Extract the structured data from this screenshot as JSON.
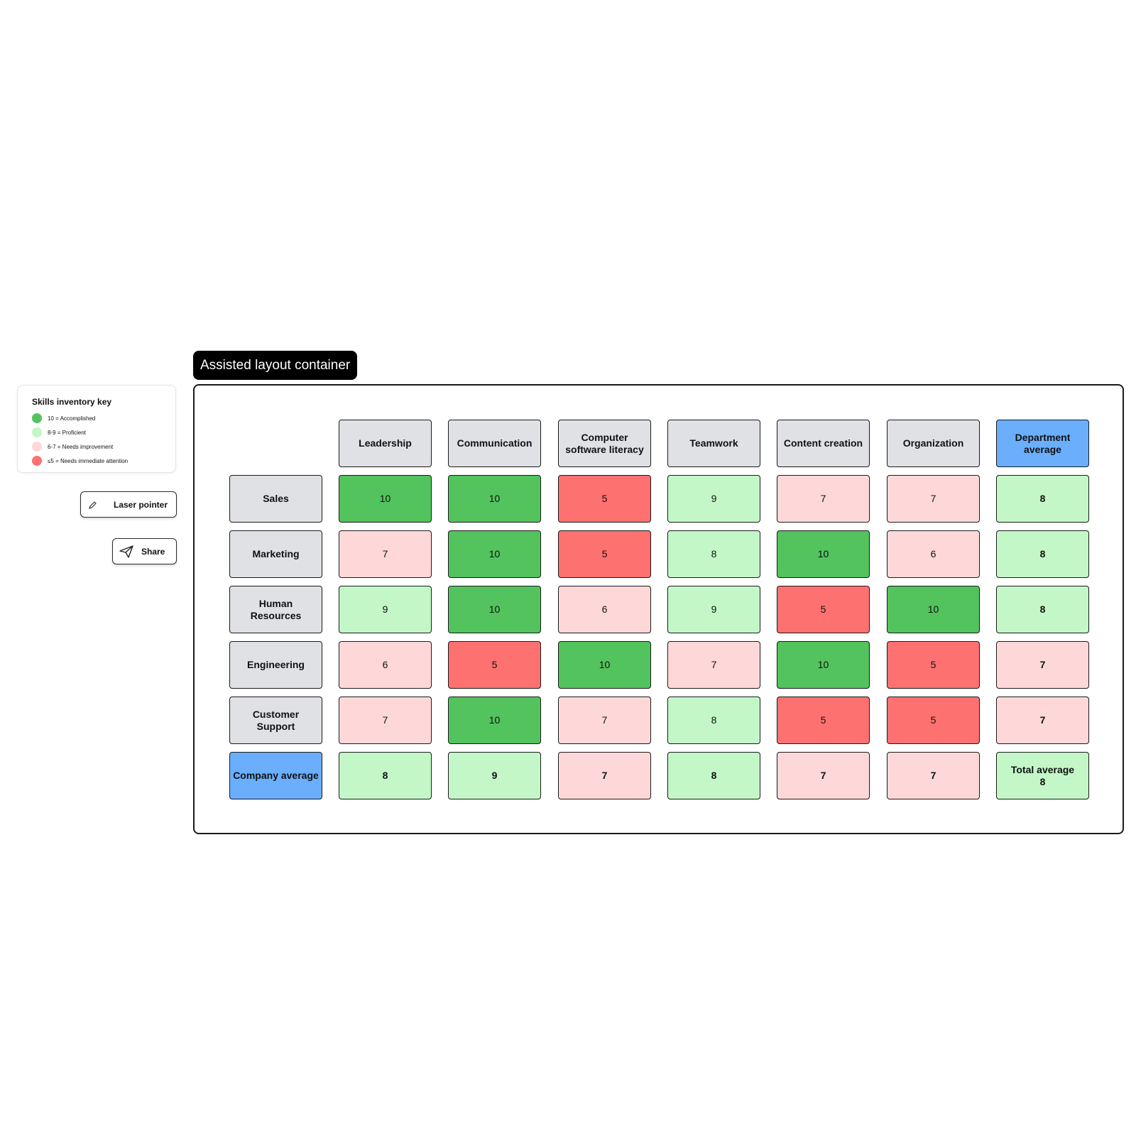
{
  "key": {
    "title": "Skills inventory key",
    "items": [
      {
        "label": "10 = Accomplished",
        "color": "#52c35d"
      },
      {
        "label": "8-9 = Proficient",
        "color": "#c3f7c8"
      },
      {
        "label": "6-7 = Needs improvement",
        "color": "#fed8d8"
      },
      {
        "label": "≤5 = Needs immediate attention",
        "color": "#fe7171"
      }
    ]
  },
  "tools": {
    "laser_label": "Laser pointer",
    "share_label": "Share"
  },
  "container": {
    "title": "Assisted layout container"
  },
  "colors": {
    "accomplished": "#52c35d",
    "proficient": "#c3f7c8",
    "needs_improvement": "#fed8d8",
    "needs_attention": "#fe7171",
    "header": "#dfe1e5",
    "highlight": "#6aaefc"
  },
  "table": {
    "columns": [
      "Leadership",
      "Communication",
      "Computer software literacy",
      "Teamwork",
      "Content creation",
      "Organization",
      "Department average"
    ],
    "rows": [
      {
        "label": "Sales",
        "values": [
          "10",
          "10",
          "5",
          "9",
          "7",
          "7",
          "8"
        ]
      },
      {
        "label": "Marketing",
        "values": [
          "7",
          "10",
          "5",
          "8",
          "10",
          "6",
          "8"
        ]
      },
      {
        "label": "Human Resources",
        "values": [
          "9",
          "10",
          "6",
          "9",
          "5",
          "10",
          "8"
        ]
      },
      {
        "label": "Engineering",
        "values": [
          "6",
          "5",
          "10",
          "7",
          "10",
          "5",
          "7"
        ]
      },
      {
        "label": "Customer Support",
        "values": [
          "7",
          "10",
          "7",
          "8",
          "5",
          "5",
          "7"
        ]
      }
    ],
    "footer": {
      "label": "Company average",
      "values": [
        "8",
        "9",
        "7",
        "8",
        "7",
        "7"
      ],
      "total_label": "Total average",
      "total_value": "8"
    }
  }
}
